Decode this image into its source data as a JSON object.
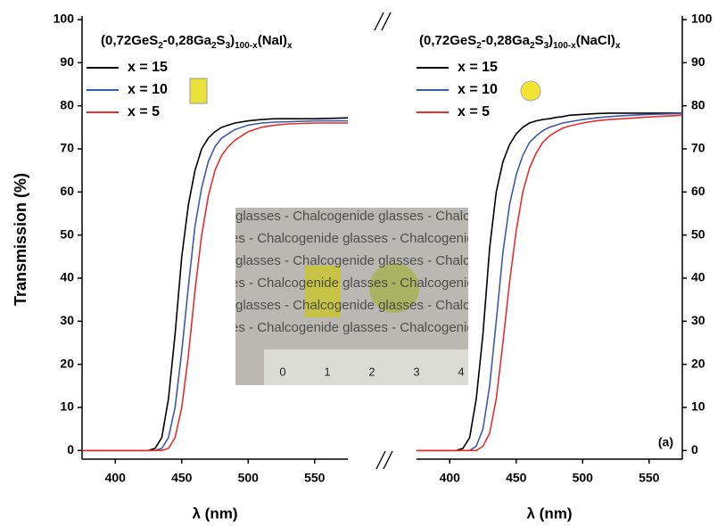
{
  "chart_data": [
    {
      "type": "line",
      "title": [
        "(0,72GeS",
        "2",
        "-0,28Ga",
        "2",
        "S",
        "3",
        ")",
        "100-x",
        "(NaI)",
        "x"
      ],
      "xlabel": "λ (nm)",
      "ylabel": "Transmission (%)",
      "yaxis_side": "left",
      "x": [
        375,
        400,
        405,
        410,
        415,
        420,
        425,
        430,
        435,
        440,
        445,
        450,
        455,
        460,
        465,
        470,
        475,
        480,
        485,
        490,
        500,
        510,
        520,
        530,
        550,
        575
      ],
      "xlim": [
        375,
        575
      ],
      "ylim": [
        -2,
        100
      ],
      "xticks": [
        400,
        450,
        500,
        550
      ],
      "yticks": [
        0,
        10,
        20,
        30,
        40,
        50,
        60,
        70,
        80,
        90,
        100
      ],
      "series": [
        {
          "name": "x = 15",
          "color": "#000000",
          "values": [
            0,
            0,
            0,
            0,
            0,
            0,
            0,
            0.5,
            3,
            12,
            27,
            45,
            57,
            65,
            70,
            72.5,
            74,
            75,
            75.5,
            76,
            76.5,
            76.8,
            77,
            77,
            77,
            77.2
          ]
        },
        {
          "name": "x = 10",
          "color": "#3b5bab",
          "values": [
            0,
            0,
            0,
            0,
            0,
            0,
            0,
            0,
            0.5,
            3,
            10,
            23,
            38,
            52,
            61,
            67,
            70.5,
            72.5,
            73.5,
            74.5,
            75.5,
            76,
            76.2,
            76.3,
            76.5,
            76.5
          ]
        },
        {
          "name": "x = 5",
          "color": "#e0312f",
          "values": [
            0,
            0,
            0,
            0,
            0,
            0,
            0,
            0,
            0,
            0.5,
            3,
            10,
            22,
            37,
            50,
            59,
            65,
            68.5,
            70.5,
            72,
            74,
            75,
            75.5,
            75.8,
            76,
            76
          ]
        }
      ]
    },
    {
      "type": "line",
      "title": [
        "(0,72GeS",
        "2",
        "-0,28Ga",
        "2",
        "S",
        "3",
        ")",
        "100-x",
        "(NaCl)",
        "x"
      ],
      "xlabel": "λ (nm)",
      "yaxis_side": "right",
      "annotation": "(a)",
      "x": [
        375,
        400,
        405,
        410,
        415,
        420,
        425,
        430,
        435,
        440,
        445,
        450,
        455,
        460,
        465,
        470,
        475,
        480,
        485,
        490,
        500,
        510,
        520,
        530,
        550,
        575
      ],
      "xlim": [
        375,
        575
      ],
      "ylim": [
        -2,
        100
      ],
      "xticks": [
        400,
        450,
        500,
        550
      ],
      "yticks": [
        0,
        10,
        20,
        30,
        40,
        50,
        60,
        70,
        80,
        90,
        100
      ],
      "series": [
        {
          "name": "x = 15",
          "color": "#000000",
          "values": [
            0,
            0,
            0,
            0.5,
            3,
            12,
            27,
            47,
            60,
            67,
            71,
            73.5,
            75,
            76,
            76.5,
            76.8,
            77,
            77.3,
            77.5,
            77.8,
            78,
            78.2,
            78.3,
            78.3,
            78.3,
            78.3
          ]
        },
        {
          "name": "x = 10",
          "color": "#3b5bab",
          "values": [
            0,
            0,
            0,
            0,
            0,
            1,
            5,
            15,
            30,
            46,
            57,
            64,
            68.5,
            71.5,
            73,
            74.2,
            75,
            75.5,
            76,
            76.3,
            76.8,
            77.2,
            77.5,
            77.7,
            78,
            78.2
          ]
        },
        {
          "name": "x = 5",
          "color": "#e0312f",
          "values": [
            0,
            0,
            0,
            0,
            0,
            0,
            1,
            4,
            12,
            25,
            39,
            51,
            60,
            65.5,
            69,
            71.5,
            73,
            74,
            74.8,
            75.3,
            76,
            76.5,
            76.8,
            77,
            77.4,
            77.8
          ]
        }
      ]
    }
  ],
  "inset": {
    "text": "glasses - Chalcogenide glasses - Chalcogenide",
    "ruler": [
      "0",
      "1",
      "2",
      "3",
      "4"
    ]
  }
}
